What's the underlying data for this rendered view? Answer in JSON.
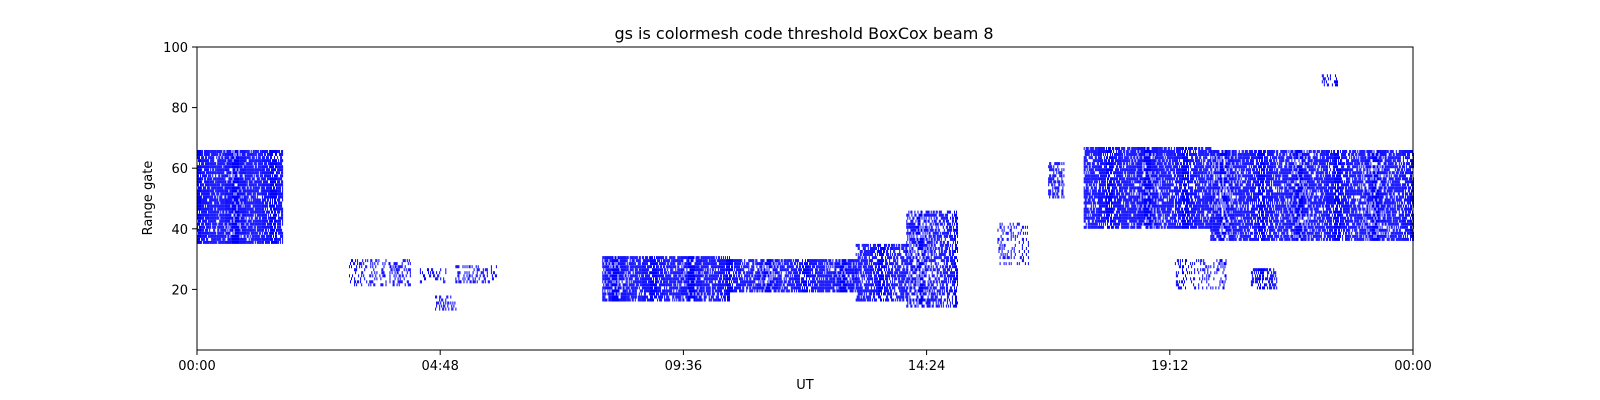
{
  "chart_data": {
    "type": "heatmap",
    "title": "gs is colormesh code threshold BoxCox beam 8",
    "xlabel": "UT",
    "ylabel": "Range gate",
    "x_ticks": [
      "00:00",
      "04:48",
      "09:36",
      "14:24",
      "19:12",
      "00:00"
    ],
    "x_range_hours": [
      0,
      24
    ],
    "y_ticks": [
      20,
      40,
      60,
      80,
      100
    ],
    "ylim": [
      0,
      100
    ],
    "grid": false,
    "color": "#0000ff",
    "regions": [
      {
        "t0": 0.0,
        "t1": 1.7,
        "g0": 35,
        "g1": 66,
        "density": 0.85
      },
      {
        "t0": 3.0,
        "t1": 4.2,
        "g0": 21,
        "g1": 30,
        "density": 0.3
      },
      {
        "t0": 4.4,
        "t1": 4.9,
        "g0": 22,
        "g1": 27,
        "density": 0.3
      },
      {
        "t0": 4.7,
        "t1": 5.1,
        "g0": 13,
        "g1": 18,
        "density": 0.35
      },
      {
        "t0": 5.1,
        "t1": 5.9,
        "g0": 22,
        "g1": 28,
        "density": 0.35
      },
      {
        "t0": 8.0,
        "t1": 10.5,
        "g0": 16,
        "g1": 31,
        "density": 0.8
      },
      {
        "t0": 10.5,
        "t1": 13.0,
        "g0": 19,
        "g1": 30,
        "density": 0.75
      },
      {
        "t0": 13.0,
        "t1": 14.0,
        "g0": 16,
        "g1": 35,
        "density": 0.7
      },
      {
        "t0": 14.0,
        "t1": 15.0,
        "g0": 14,
        "g1": 46,
        "density": 0.6
      },
      {
        "t0": 15.8,
        "t1": 16.4,
        "g0": 28,
        "g1": 42,
        "density": 0.25
      },
      {
        "t0": 16.8,
        "t1": 17.1,
        "g0": 50,
        "g1": 62,
        "density": 0.5
      },
      {
        "t0": 17.5,
        "t1": 20.0,
        "g0": 40,
        "g1": 67,
        "density": 0.8
      },
      {
        "t0": 20.0,
        "t1": 24.0,
        "g0": 36,
        "g1": 66,
        "density": 0.75
      },
      {
        "t0": 19.3,
        "t1": 20.3,
        "g0": 20,
        "g1": 30,
        "density": 0.25
      },
      {
        "t0": 20.8,
        "t1": 21.3,
        "g0": 20,
        "g1": 27,
        "density": 0.6
      },
      {
        "t0": 22.2,
        "t1": 22.5,
        "g0": 87,
        "g1": 91,
        "density": 0.4
      }
    ]
  }
}
